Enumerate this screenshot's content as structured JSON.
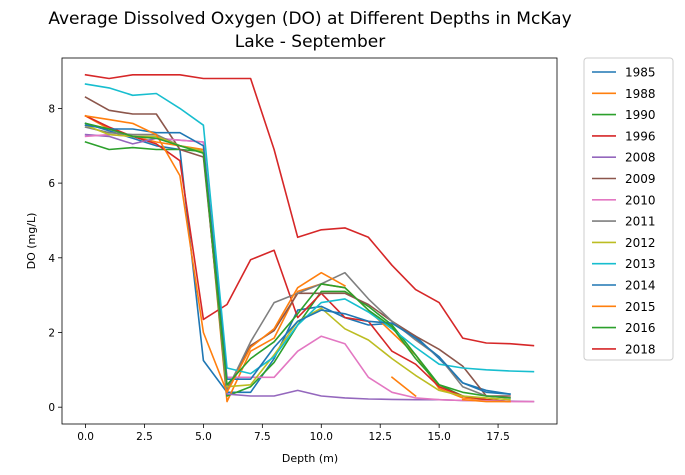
{
  "chart_data": {
    "type": "line",
    "title": "Average Dissolved Oxygen (DO) at Different Depths in McKay Lake - September",
    "title_lines": [
      "Average Dissolved Oxygen (DO) at Different Depths in McKay",
      "Lake - September"
    ],
    "xlabel": "Depth (m)",
    "ylabel": "DO (mg/L)",
    "xlim": [
      -1,
      20
    ],
    "ylim": [
      -0.45,
      9.35
    ],
    "xticks": [
      0.0,
      2.5,
      5.0,
      7.5,
      10.0,
      12.5,
      15.0,
      17.5
    ],
    "xtick_labels": [
      "0.0",
      "2.5",
      "5.0",
      "7.5",
      "10.0",
      "12.5",
      "15.0",
      "17.5"
    ],
    "yticks": [
      0,
      2,
      4,
      6,
      8
    ],
    "ytick_labels": [
      "0",
      "2",
      "4",
      "6",
      "8"
    ],
    "grid": false,
    "legend": "outside-right",
    "series": [
      {
        "name": "1985",
        "color": "#1f77b4",
        "x": [
          0,
          1,
          2,
          3,
          4,
          5,
          6,
          7,
          8,
          9,
          10,
          11,
          12,
          13,
          14,
          15,
          16,
          17,
          18
        ],
        "y": [
          7.6,
          7.4,
          7.2,
          7.0,
          6.9,
          1.25,
          0.4,
          0.4,
          1.3,
          2.6,
          2.7,
          2.4,
          2.2,
          2.25,
          1.9,
          1.3,
          0.65,
          0.45,
          0.35
        ]
      },
      {
        "name": "1988",
        "color": "#ff7f0e",
        "x": [
          0,
          1,
          2,
          3,
          4,
          5,
          6,
          7,
          8,
          9,
          10,
          11,
          12,
          13,
          14,
          15,
          16,
          17,
          18
        ],
        "y": [
          7.8,
          7.45,
          7.25,
          7.1,
          7.0,
          6.9,
          0.15,
          1.5,
          1.85,
          3.1,
          3.3,
          3.2,
          2.6,
          2.0,
          1.4,
          0.5,
          0.25,
          0.2,
          0.15
        ]
      },
      {
        "name": "1990",
        "color": "#2ca02c",
        "x": [
          0,
          1,
          2,
          3,
          4,
          5,
          6,
          7,
          8,
          9,
          10,
          11,
          12,
          13,
          14,
          15,
          16,
          17,
          18
        ],
        "y": [
          7.1,
          6.9,
          6.95,
          6.9,
          6.9,
          6.85,
          0.3,
          0.55,
          1.2,
          2.2,
          3.1,
          3.1,
          2.7,
          2.2,
          1.4,
          0.6,
          0.3,
          0.2,
          0.15
        ]
      },
      {
        "name": "1996",
        "color": "#d62728",
        "x": [
          0,
          1,
          2,
          3,
          4,
          5,
          6,
          7,
          8,
          9,
          10,
          11,
          12,
          13,
          14,
          15,
          16,
          17,
          18
        ],
        "y": [
          7.8,
          7.5,
          7.25,
          7.05,
          6.6,
          2.35,
          2.75,
          3.95,
          4.2,
          2.4,
          3.05,
          2.4,
          2.3,
          1.5,
          1.15,
          0.55,
          0.3,
          0.2,
          0.15
        ]
      },
      {
        "name": "2008",
        "color": "#9467bd",
        "x": [
          0,
          1,
          2,
          3,
          4,
          5,
          6,
          7,
          8,
          9,
          10,
          11,
          12,
          13,
          14,
          15,
          16,
          17,
          18,
          19
        ],
        "y": [
          7.3,
          7.25,
          7.05,
          7.2,
          7.15,
          7.1,
          0.35,
          0.3,
          0.3,
          0.45,
          0.3,
          0.25,
          0.22,
          0.21,
          0.2,
          0.2,
          0.18,
          0.17,
          0.16,
          0.15
        ]
      },
      {
        "name": "2009",
        "color": "#8c564b",
        "x": [
          0,
          1,
          2,
          3,
          4,
          5,
          6,
          7,
          8,
          9,
          10,
          11,
          12,
          13,
          14,
          15,
          16,
          17,
          18
        ],
        "y": [
          8.3,
          7.95,
          7.85,
          7.85,
          6.9,
          6.7,
          0.5,
          1.65,
          2.05,
          3.05,
          3.05,
          3.05,
          2.75,
          2.3,
          1.9,
          1.55,
          1.1,
          0.3,
          0.3
        ]
      },
      {
        "name": "2010",
        "color": "#e377c2",
        "x": [
          0,
          1,
          2,
          3,
          4,
          5,
          6,
          7,
          8,
          9,
          10,
          11,
          12,
          13,
          14,
          15,
          16,
          17,
          18,
          19
        ],
        "y": [
          7.25,
          7.3,
          7.25,
          7.2,
          7.15,
          7.1,
          0.8,
          0.8,
          0.8,
          1.5,
          1.9,
          1.7,
          0.8,
          0.4,
          0.25,
          0.2,
          0.18,
          0.17,
          0.15,
          0.15
        ]
      },
      {
        "name": "2011",
        "color": "#7f7f7f",
        "x": [
          0,
          1,
          2,
          3,
          4,
          5,
          6,
          7,
          8,
          9,
          10,
          11,
          12,
          13,
          14,
          15,
          16,
          17,
          18
        ],
        "y": [
          7.5,
          7.35,
          7.3,
          7.3,
          7.0,
          6.85,
          0.45,
          1.75,
          2.8,
          3.05,
          3.3,
          3.6,
          2.9,
          2.3,
          1.8,
          1.35,
          0.55,
          0.3,
          0.25
        ]
      },
      {
        "name": "2012",
        "color": "#bcbd22",
        "x": [
          0,
          1,
          2,
          3,
          4,
          5,
          6,
          7,
          8,
          9,
          10,
          11,
          12,
          13,
          14,
          15,
          16,
          17,
          18
        ],
        "y": [
          7.55,
          7.3,
          7.25,
          7.25,
          7.0,
          6.85,
          0.55,
          0.6,
          1.4,
          2.3,
          2.65,
          2.1,
          1.8,
          1.3,
          0.85,
          0.45,
          0.3,
          0.25,
          0.2
        ]
      },
      {
        "name": "2013",
        "color": "#17becf",
        "x": [
          0,
          1,
          2,
          3,
          4,
          5,
          6,
          7,
          8,
          9,
          10,
          11,
          12,
          13,
          14,
          15,
          16,
          17,
          18,
          19
        ],
        "y": [
          8.65,
          8.55,
          8.35,
          8.4,
          8.0,
          7.55,
          1.05,
          0.9,
          1.35,
          2.2,
          2.8,
          2.9,
          2.55,
          2.1,
          1.6,
          1.15,
          1.05,
          1.0,
          0.97,
          0.95
        ]
      },
      {
        "name": "2014",
        "color": "#1f77b4",
        "x": [
          0,
          1,
          2,
          3,
          4,
          5,
          6,
          7,
          8,
          9,
          10,
          11,
          12,
          13,
          14,
          15,
          16,
          17,
          18
        ],
        "y": [
          7.55,
          7.45,
          7.45,
          7.35,
          7.35,
          7.0,
          0.75,
          0.75,
          1.6,
          2.3,
          2.6,
          2.5,
          2.3,
          2.25,
          1.85,
          1.35,
          0.65,
          0.4,
          0.35
        ]
      },
      {
        "name": "2015",
        "color": "#ff7f0e",
        "x": [
          0,
          1,
          2,
          3,
          4,
          5,
          6,
          7,
          8,
          9,
          10,
          11,
          12,
          13,
          14,
          15,
          16,
          17,
          18
        ],
        "y": [
          7.8,
          7.7,
          7.6,
          7.3,
          6.2,
          2.0,
          0.4,
          1.6,
          2.1,
          3.2,
          3.6,
          3.25,
          null,
          0.8,
          0.3,
          null,
          0.2,
          0.15,
          0.15
        ]
      },
      {
        "name": "2016",
        "color": "#2ca02c",
        "x": [
          0,
          1,
          2,
          3,
          4,
          5,
          6,
          7,
          8,
          9,
          10,
          11,
          12,
          13,
          14,
          15,
          16,
          17,
          18
        ],
        "y": [
          7.6,
          7.45,
          7.25,
          7.2,
          7.0,
          6.8,
          0.6,
          1.3,
          1.75,
          2.5,
          3.3,
          3.2,
          2.6,
          2.15,
          1.3,
          0.6,
          0.4,
          0.3,
          0.25
        ]
      },
      {
        "name": "2018",
        "color": "#d62728",
        "x": [
          0,
          1,
          2,
          3,
          4,
          5,
          6,
          7,
          8,
          9,
          10,
          11,
          12,
          13,
          14,
          15,
          16,
          17,
          18,
          19
        ],
        "y": [
          8.9,
          8.8,
          8.9,
          8.9,
          8.9,
          8.8,
          8.8,
          8.8,
          6.9,
          4.55,
          4.75,
          4.8,
          4.55,
          3.8,
          3.15,
          2.8,
          1.85,
          1.72,
          1.7,
          1.65
        ]
      }
    ]
  }
}
